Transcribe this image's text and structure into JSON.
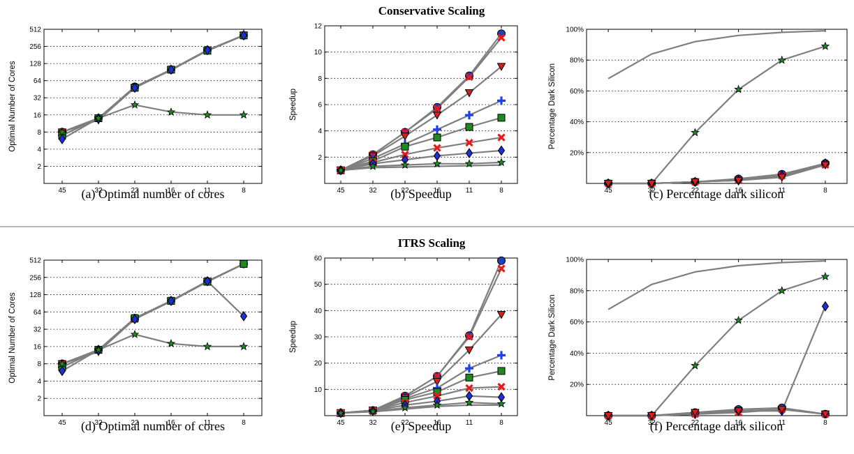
{
  "sections": [
    {
      "title": "Conservative Scaling"
    },
    {
      "title": "ITRS Scaling"
    }
  ],
  "colors": {
    "line": "#7f7f7f",
    "circle": "#1f3fbf",
    "x_mark": "#e8191c",
    "triangle": "#d81e1e",
    "plus": "#1f3fe8",
    "square": "#1f8a1f",
    "diamond": "#1f2fd0",
    "star": "#1f8a1f"
  },
  "chart_data": [
    {
      "type": "line",
      "caption": "(a) Optimal number of cores",
      "ylabel": "Optimal Number of Cores",
      "categories": [
        "45",
        "32",
        "22",
        "16",
        "11",
        "8"
      ],
      "yscale": "log2",
      "ylim": [
        1,
        512
      ],
      "yticks": [
        2,
        4,
        8,
        16,
        32,
        64,
        128,
        256,
        512
      ],
      "series": [
        {
          "marker": "circle",
          "values": [
            8,
            14,
            50,
            100,
            220,
            400
          ]
        },
        {
          "marker": "x",
          "values": [
            8,
            14,
            48,
            100,
            215,
            400
          ]
        },
        {
          "marker": "triangle",
          "values": [
            8,
            13,
            48,
            98,
            215,
            400
          ]
        },
        {
          "marker": "plus",
          "values": [
            7,
            14,
            48,
            100,
            220,
            400
          ]
        },
        {
          "marker": "square",
          "values": [
            7,
            14,
            48,
            100,
            215,
            400
          ]
        },
        {
          "marker": "diamond",
          "values": [
            6,
            14,
            48,
            100,
            220,
            400
          ]
        },
        {
          "marker": "star",
          "values": [
            8,
            14,
            24,
            18,
            16,
            16
          ]
        }
      ]
    },
    {
      "type": "line",
      "caption": "(b) Speedup",
      "ylabel": "Speedup",
      "categories": [
        "45",
        "32",
        "22",
        "16",
        "11",
        "8"
      ],
      "yscale": "linear",
      "ylim": [
        0,
        12
      ],
      "yticks": [
        2,
        4,
        6,
        8,
        10,
        12
      ],
      "series": [
        {
          "marker": "circle",
          "values": [
            1,
            2.2,
            3.9,
            5.8,
            8.2,
            11.4
          ]
        },
        {
          "marker": "x",
          "values": [
            1,
            2.2,
            3.9,
            5.7,
            8.1,
            11.1
          ]
        },
        {
          "marker": "triangle",
          "values": [
            1,
            2.1,
            3.6,
            5.2,
            6.9,
            8.9
          ]
        },
        {
          "marker": "plus",
          "values": [
            1,
            1.9,
            3.0,
            4.1,
            5.2,
            6.3
          ]
        },
        {
          "marker": "square",
          "values": [
            1,
            1.7,
            2.8,
            3.5,
            4.3,
            5.0
          ]
        },
        {
          "marker": "x",
          "values": [
            1,
            1.6,
            2.2,
            2.7,
            3.1,
            3.5
          ]
        },
        {
          "marker": "diamond",
          "values": [
            1,
            1.5,
            1.8,
            2.1,
            2.3,
            2.5
          ]
        },
        {
          "marker": "star",
          "values": [
            1,
            1.3,
            1.4,
            1.5,
            1.5,
            1.6
          ]
        },
        {
          "marker": "none",
          "values": [
            1,
            1.2,
            1.25,
            1.3,
            1.35,
            1.4
          ]
        }
      ]
    },
    {
      "type": "line",
      "caption": "(c) Percentage dark silicon",
      "ylabel": "Percentage Dark Silicon",
      "categories": [
        "45",
        "32",
        "22",
        "16",
        "11",
        "8"
      ],
      "yscale": "linear",
      "ylim": [
        0,
        100
      ],
      "yticks": [
        20,
        40,
        60,
        80,
        100
      ],
      "ytick_labels": [
        "20%",
        "40%",
        "60%",
        "80%",
        "100%"
      ],
      "series": [
        {
          "marker": "none",
          "values": [
            68,
            84,
            92,
            96,
            98,
            99
          ]
        },
        {
          "marker": "star",
          "values": [
            0,
            0,
            33,
            61,
            80,
            89
          ]
        },
        {
          "marker": "circle",
          "values": [
            0,
            0,
            1,
            3,
            6,
            13
          ]
        },
        {
          "marker": "x",
          "values": [
            0,
            0,
            1,
            2,
            5,
            12
          ]
        },
        {
          "marker": "diamond",
          "values": [
            0,
            0,
            1,
            2,
            5,
            13
          ]
        },
        {
          "marker": "triangle",
          "values": [
            0,
            0,
            1,
            2,
            4,
            12
          ]
        }
      ]
    },
    {
      "type": "line",
      "caption": "(d) Optimal number of cores",
      "ylabel": "Optimal Number of Cores",
      "categories": [
        "45",
        "32",
        "22",
        "16",
        "11",
        "8"
      ],
      "yscale": "log2",
      "ylim": [
        1,
        512
      ],
      "yticks": [
        2,
        4,
        8,
        16,
        32,
        64,
        128,
        256,
        512
      ],
      "series": [
        {
          "marker": "circle",
          "values": [
            8,
            14,
            50,
            100,
            220,
            440
          ]
        },
        {
          "marker": "x",
          "values": [
            8,
            14,
            48,
            100,
            215,
            440
          ]
        },
        {
          "marker": "triangle",
          "values": [
            8,
            13,
            48,
            98,
            215,
            440
          ]
        },
        {
          "marker": "plus",
          "values": [
            7,
            14,
            48,
            100,
            220,
            440
          ]
        },
        {
          "marker": "square",
          "values": [
            7,
            14,
            50,
            100,
            215,
            440
          ]
        },
        {
          "marker": "diamond",
          "values": [
            6,
            14,
            48,
            100,
            220,
            54
          ]
        },
        {
          "marker": "star",
          "values": [
            8,
            14,
            26,
            18,
            16,
            16
          ]
        }
      ]
    },
    {
      "type": "line",
      "caption": "(e) Speedup",
      "ylabel": "Speedup",
      "categories": [
        "45",
        "32",
        "22",
        "16",
        "11",
        "8"
      ],
      "yscale": "linear",
      "ylim": [
        0,
        60
      ],
      "yticks": [
        10,
        20,
        30,
        40,
        50,
        60
      ],
      "series": [
        {
          "marker": "circle",
          "values": [
            1,
            2,
            7.5,
            15,
            30.5,
            59
          ]
        },
        {
          "marker": "x",
          "values": [
            1,
            2,
            7.5,
            15,
            30,
            56
          ]
        },
        {
          "marker": "triangle",
          "values": [
            1,
            2,
            7,
            13,
            25,
            38.5
          ]
        },
        {
          "marker": "plus",
          "values": [
            1,
            2,
            6.5,
            10.5,
            18,
            23
          ]
        },
        {
          "marker": "square",
          "values": [
            1,
            2,
            6,
            9,
            14.5,
            17
          ]
        },
        {
          "marker": "x",
          "values": [
            1,
            2,
            5,
            7.5,
            10.5,
            11
          ]
        },
        {
          "marker": "diamond",
          "values": [
            1,
            1.8,
            4,
            5.5,
            7.5,
            7
          ]
        },
        {
          "marker": "star",
          "values": [
            1,
            1.6,
            3,
            4,
            5,
            4.5
          ]
        },
        {
          "marker": "none",
          "values": [
            1,
            1.5,
            2.5,
            3.5,
            4,
            4
          ]
        }
      ]
    },
    {
      "type": "line",
      "caption": "(f) Percentage dark silicon",
      "ylabel": "Percentage Dark Silicon",
      "categories": [
        "45",
        "32",
        "22",
        "16",
        "11",
        "8"
      ],
      "yscale": "linear",
      "ylim": [
        0,
        100
      ],
      "yticks": [
        20,
        40,
        60,
        80,
        100
      ],
      "ytick_labels": [
        "20%",
        "40%",
        "60%",
        "80%",
        "100%"
      ],
      "series": [
        {
          "marker": "none",
          "values": [
            68,
            84,
            92,
            96,
            98,
            99
          ]
        },
        {
          "marker": "star",
          "values": [
            0,
            0,
            32,
            61,
            80,
            89
          ]
        },
        {
          "marker": "diamond",
          "values": [
            0,
            0,
            1,
            3,
            3,
            70
          ]
        },
        {
          "marker": "circle",
          "values": [
            0,
            0,
            2,
            4,
            5,
            1
          ]
        },
        {
          "marker": "x",
          "values": [
            0,
            0,
            1,
            2,
            4,
            1
          ]
        },
        {
          "marker": "triangle",
          "values": [
            0,
            0,
            2,
            3,
            4,
            1
          ]
        }
      ]
    }
  ]
}
